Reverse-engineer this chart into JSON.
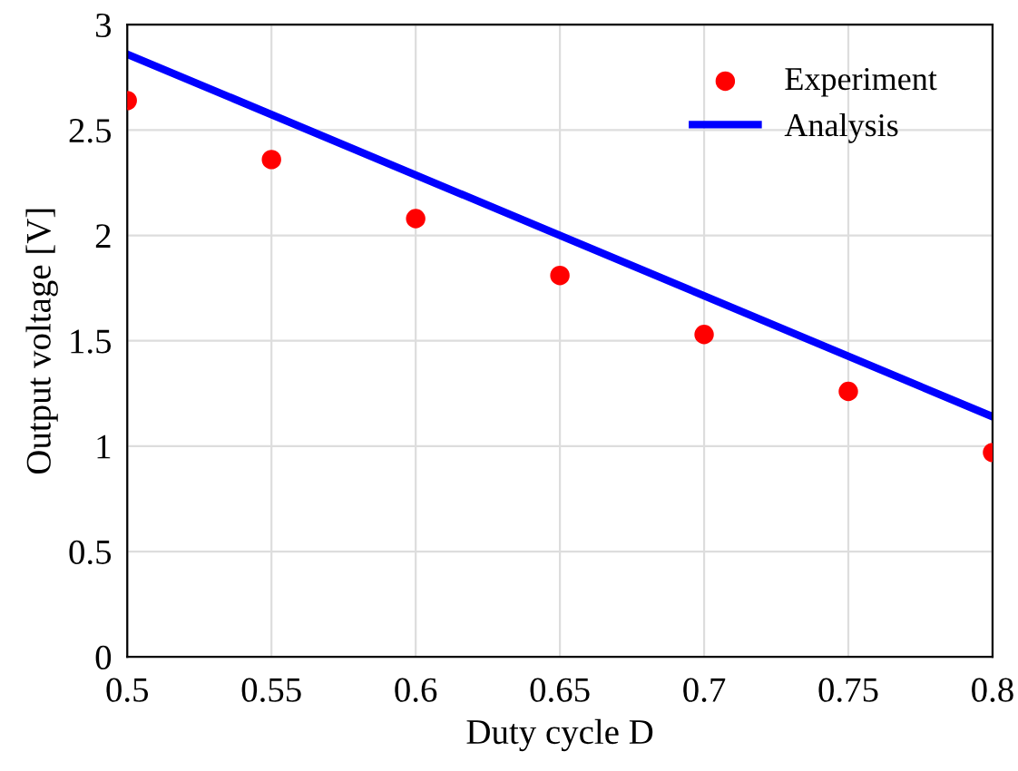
{
  "chart_data": {
    "type": "scatter",
    "xlabel": "Duty cycle D",
    "ylabel": "Output voltage [V]",
    "series": [
      {
        "name": "Experiment",
        "color": "#ff0000",
        "x": [
          0.5,
          0.55,
          0.6,
          0.65,
          0.7,
          0.75,
          0.8
        ],
        "values": [
          2.64,
          2.36,
          2.08,
          1.81,
          1.53,
          1.26,
          0.97
        ],
        "marker": "circle"
      },
      {
        "name": "Analysis",
        "type": "line",
        "color": "#0000ff",
        "x": [
          0.5,
          0.8
        ],
        "values": [
          2.86,
          1.14
        ],
        "line_style": "solid"
      }
    ],
    "xlim": [
      0.5,
      0.8
    ],
    "xticks": [
      0.5,
      0.55,
      0.6,
      0.65,
      0.7,
      0.75,
      0.8
    ],
    "ylim": [
      0,
      3
    ],
    "yticks": [
      0,
      0.5,
      1,
      1.5,
      2,
      2.5,
      3
    ],
    "grid": true,
    "legend": "top right"
  }
}
